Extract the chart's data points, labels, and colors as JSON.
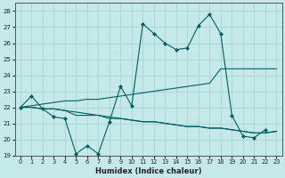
{
  "title": "",
  "xlabel": "Humidex (Indice chaleur)",
  "xlim": [
    -0.5,
    23.5
  ],
  "ylim": [
    19,
    28.5
  ],
  "yticks": [
    19,
    20,
    21,
    22,
    23,
    24,
    25,
    26,
    27,
    28
  ],
  "xticks": [
    0,
    1,
    2,
    3,
    4,
    5,
    6,
    7,
    8,
    9,
    10,
    11,
    12,
    13,
    14,
    15,
    16,
    17,
    18,
    19,
    20,
    21,
    22,
    23
  ],
  "background_color": "#c5e8e8",
  "grid_color": "#a8d4d4",
  "line_color": "#006060",
  "line1": {
    "x": [
      0,
      1,
      2,
      3,
      4,
      5,
      6,
      7,
      8,
      9,
      10,
      11,
      12,
      13,
      14,
      15,
      16,
      17,
      18,
      19,
      20,
      21,
      22
    ],
    "y": [
      22.0,
      22.7,
      21.9,
      21.4,
      21.3,
      19.1,
      19.6,
      19.1,
      21.1,
      23.3,
      22.1,
      27.2,
      26.6,
      26.0,
      25.6,
      25.7,
      27.1,
      27.8,
      26.6,
      21.5,
      20.2,
      20.1,
      20.6
    ]
  },
  "line2": {
    "x": [
      0,
      1,
      2,
      3,
      4,
      5,
      6,
      7,
      8,
      9,
      10,
      11,
      12,
      13,
      14,
      15,
      16,
      17,
      18,
      19,
      20,
      21,
      22,
      23
    ],
    "y": [
      22.0,
      22.1,
      22.2,
      22.3,
      22.4,
      22.4,
      22.5,
      22.5,
      22.6,
      22.7,
      22.8,
      22.9,
      23.0,
      23.1,
      23.2,
      23.3,
      23.4,
      23.5,
      24.4,
      24.4,
      24.4,
      24.4,
      24.4,
      24.4
    ]
  },
  "line3": {
    "x": [
      0,
      1,
      2,
      3,
      4,
      5,
      6,
      7,
      8,
      9,
      10,
      11,
      12,
      13,
      14,
      15,
      16,
      17,
      18,
      19,
      20,
      21,
      22,
      23
    ],
    "y": [
      22.0,
      22.0,
      21.9,
      21.9,
      21.8,
      21.7,
      21.6,
      21.5,
      21.4,
      21.3,
      21.2,
      21.1,
      21.1,
      21.0,
      20.9,
      20.8,
      20.8,
      20.7,
      20.7,
      20.6,
      20.5,
      20.4,
      20.4,
      20.5
    ]
  },
  "line4": {
    "x": [
      0,
      1,
      2,
      3,
      4,
      5,
      6,
      7,
      8,
      9,
      10,
      11,
      12,
      13,
      14,
      15,
      16,
      17,
      18,
      19,
      20,
      21,
      22,
      23
    ],
    "y": [
      22.0,
      22.0,
      21.9,
      21.9,
      21.8,
      21.5,
      21.5,
      21.5,
      21.3,
      21.3,
      21.2,
      21.1,
      21.1,
      21.0,
      20.9,
      20.8,
      20.8,
      20.7,
      20.7,
      20.6,
      20.5,
      20.4,
      20.4,
      20.5
    ]
  }
}
